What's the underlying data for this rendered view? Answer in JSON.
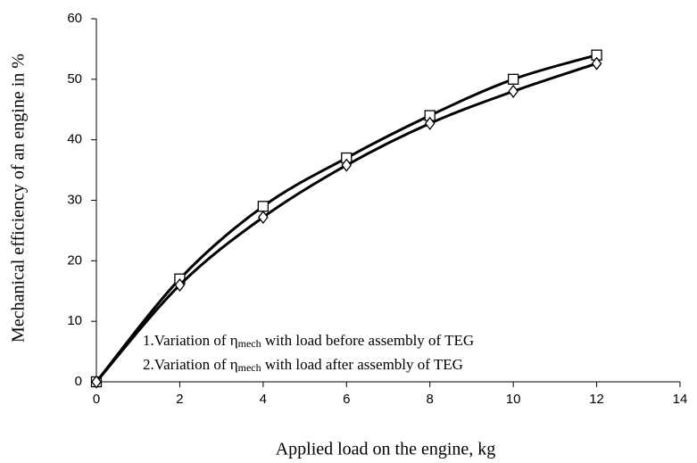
{
  "chart_data": {
    "type": "line",
    "x_label": "Applied load on the engine, kg",
    "y_label": "Mechanical efficiency of an engine in %",
    "x": [
      0,
      2,
      4,
      6,
      8,
      10,
      12
    ],
    "series": [
      {
        "marker": "square",
        "color": "#000000",
        "values": [
          0,
          17,
          29,
          37,
          44,
          50,
          54
        ]
      },
      {
        "marker": "diamond",
        "color": "#000000",
        "values": [
          0,
          16,
          27.2,
          35.8,
          42.7,
          48,
          52.6
        ]
      }
    ],
    "annotations": [
      [
        "1.Variation of η",
        "mech",
        " with load before assembly of TEG"
      ],
      [
        "2.Variation of η",
        "mech",
        " with load after assembly of TEG"
      ]
    ],
    "xlim": [
      0,
      14
    ],
    "xticks": [
      0,
      2,
      4,
      6,
      8,
      10,
      12,
      14
    ],
    "ylim": [
      0,
      60
    ],
    "yticks": [
      0,
      10,
      20,
      30,
      40,
      50,
      60
    ],
    "grid": false
  }
}
